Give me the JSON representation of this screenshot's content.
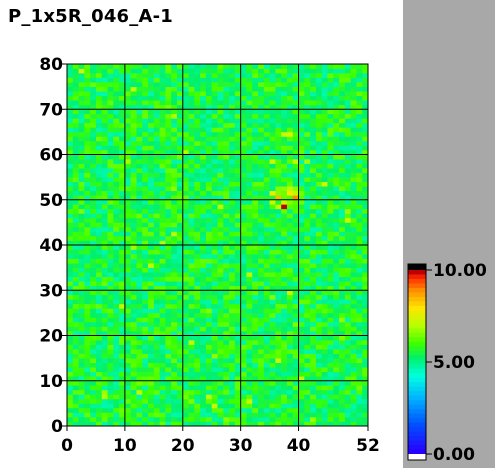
{
  "chart_data": {
    "type": "heatmap",
    "title": "P_1x5R_046_A-1",
    "xlabel": "",
    "ylabel": "",
    "x_ticks": [
      "0",
      "10",
      "20",
      "30",
      "40",
      "52"
    ],
    "x_tick_values": [
      0,
      10,
      20,
      30,
      40,
      52
    ],
    "y_ticks": [
      "0",
      "10",
      "20",
      "30",
      "40",
      "50",
      "60",
      "70",
      "80"
    ],
    "y_tick_values": [
      0,
      10,
      20,
      30,
      40,
      50,
      60,
      70,
      80
    ],
    "xlim": [
      0,
      52
    ],
    "ylim": [
      0,
      80
    ],
    "grid": true,
    "grid_x_values": [
      10,
      20,
      30,
      40
    ],
    "grid_y_values": [
      10,
      20,
      30,
      40,
      50,
      60,
      70
    ],
    "columns": 52,
    "rows": 80,
    "value_range": [
      0,
      10
    ],
    "background_level": 5.5,
    "hotspots": [
      {
        "x": 37.5,
        "y": 48.5,
        "value": 10.0
      },
      {
        "x": 36.5,
        "y": 50.5,
        "value": 8.5
      },
      {
        "x": 38.5,
        "y": 51.5,
        "value": 8.0
      },
      {
        "x": 39.5,
        "y": 50.5,
        "value": 9.0
      },
      {
        "x": 35.5,
        "y": 51.5,
        "value": 7.8
      },
      {
        "x": 38.5,
        "y": 64.5,
        "value": 7.5
      },
      {
        "x": 37.5,
        "y": 64.5,
        "value": 7.3
      },
      {
        "x": 9.5,
        "y": 26.5,
        "value": 7.2
      },
      {
        "x": 16.5,
        "y": 40.5,
        "value": 7.0
      },
      {
        "x": 18.5,
        "y": 68.5,
        "value": 7.0
      },
      {
        "x": 10.5,
        "y": 58.5,
        "value": 6.9
      }
    ],
    "colorbar": {
      "labels": [
        "10.00",
        "5.00",
        "0.00"
      ],
      "label_values": [
        10,
        5,
        0
      ],
      "colors": [
        "#ffffff",
        "#2800ff",
        "#0050ff",
        "#00b4ff",
        "#00ffe0",
        "#00ff64",
        "#3cff00",
        "#b4ff00",
        "#ffe600",
        "#ff8c00",
        "#ff2800",
        "#000000"
      ]
    }
  }
}
